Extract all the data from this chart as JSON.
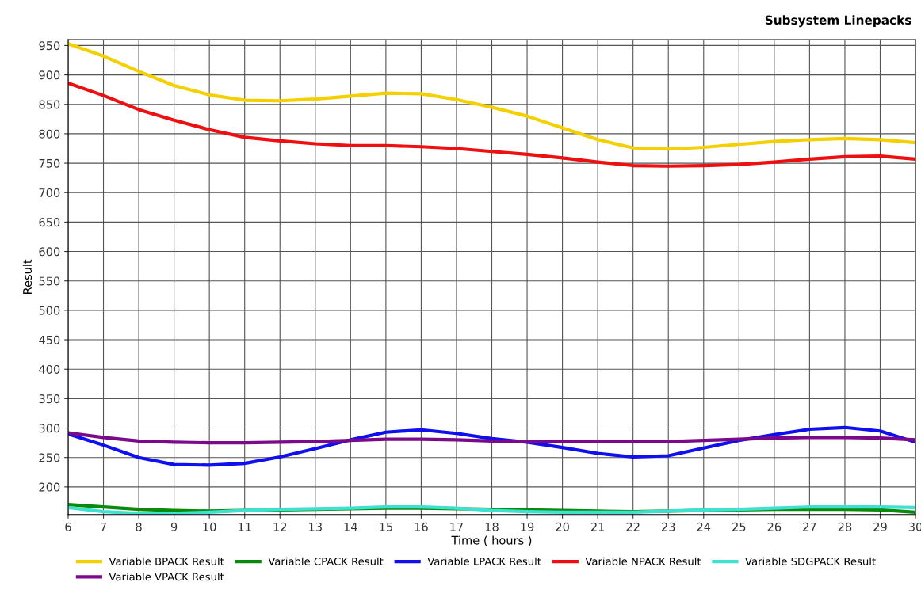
{
  "chart_data": {
    "type": "line",
    "title": "Subsystem Linepacks",
    "xlabel": "Time ( hours )",
    "ylabel": "Result",
    "x": [
      6,
      7,
      8,
      9,
      10,
      11,
      12,
      13,
      14,
      15,
      16,
      17,
      18,
      19,
      20,
      21,
      22,
      23,
      24,
      25,
      26,
      27,
      28,
      29,
      30
    ],
    "xlim": [
      6,
      30
    ],
    "xticks": [
      6,
      7,
      8,
      9,
      10,
      11,
      12,
      13,
      14,
      15,
      16,
      17,
      18,
      19,
      20,
      21,
      22,
      23,
      24,
      25,
      26,
      27,
      28,
      29,
      30
    ],
    "ylim": [
      153,
      960
    ],
    "yticks": [
      200,
      250,
      300,
      350,
      400,
      450,
      500,
      550,
      600,
      650,
      700,
      750,
      800,
      850,
      900,
      950
    ],
    "grid": true,
    "legend": "bottom",
    "marker": "none",
    "line_style": "solid",
    "series": [
      {
        "name": "Variable BPACK Result",
        "color": "#f5d000",
        "values": [
          953,
          932,
          906,
          882,
          866,
          857,
          856,
          859,
          864,
          869,
          868,
          858,
          845,
          830,
          810,
          790,
          776,
          774,
          777,
          782,
          787,
          790,
          792,
          790,
          785
        ]
      },
      {
        "name": "Variable CPACK Result",
        "color": "#0a8a0a",
        "values": [
          170,
          166,
          162,
          160,
          159,
          160,
          161,
          162,
          163,
          164,
          164,
          163,
          162,
          161,
          160,
          159,
          158,
          159,
          160,
          161,
          162,
          162,
          162,
          161,
          157
        ]
      },
      {
        "name": "Variable LPACK Result",
        "color": "#1010ee",
        "values": [
          290,
          271,
          250,
          238,
          237,
          240,
          251,
          265,
          280,
          293,
          297,
          291,
          282,
          276,
          267,
          257,
          251,
          253,
          266,
          279,
          289,
          298,
          301,
          295,
          276
        ]
      },
      {
        "name": "Variable NPACK Result",
        "color": "#ee1010",
        "values": [
          886,
          865,
          841,
          823,
          807,
          794,
          788,
          783,
          780,
          780,
          778,
          775,
          770,
          765,
          759,
          752,
          746,
          745,
          746,
          748,
          752,
          757,
          761,
          762,
          757
        ]
      },
      {
        "name": "Variable SDGPACK Result",
        "color": "#40e0d0",
        "values": [
          165,
          158,
          155,
          155,
          157,
          160,
          162,
          163,
          164,
          166,
          166,
          164,
          160,
          158,
          157,
          157,
          157,
          159,
          161,
          162,
          164,
          166,
          166,
          166,
          165
        ]
      },
      {
        "name": "Variable VPACK Result",
        "color": "#7a0a8a",
        "values": [
          292,
          284,
          278,
          276,
          275,
          275,
          276,
          277,
          279,
          281,
          281,
          280,
          278,
          277,
          277,
          277,
          277,
          277,
          279,
          281,
          283,
          284,
          284,
          283,
          280
        ]
      }
    ]
  }
}
